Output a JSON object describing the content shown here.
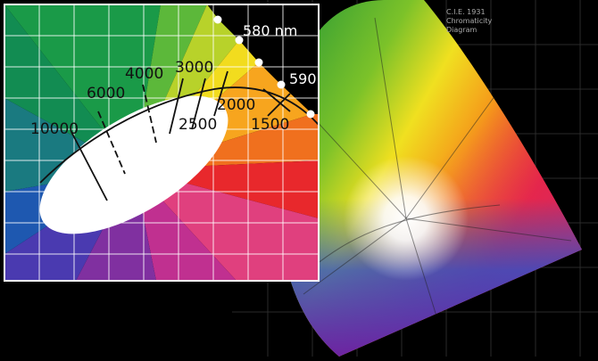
{
  "inset": {
    "wavelength_labels": [
      "580 nm",
      "590"
    ],
    "temperature_labels": [
      "10000",
      "6000",
      "4000",
      "3000",
      "2500",
      "2000",
      "1500"
    ]
  },
  "diagram": {
    "title_lines": [
      "C.I.E. 1931",
      "Chromaticity",
      "Diagram"
    ]
  }
}
